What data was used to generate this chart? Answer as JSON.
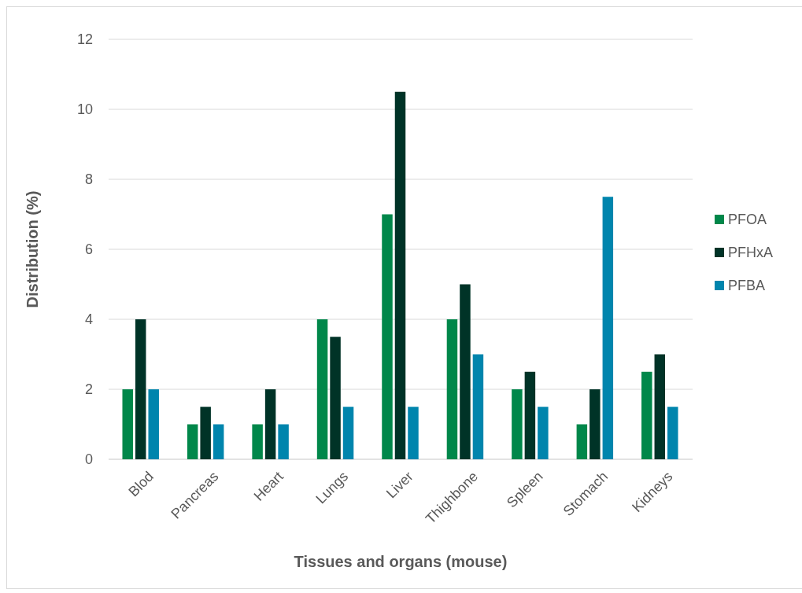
{
  "chart_data": {
    "type": "bar",
    "xlabel": "Tissues and organs (mouse)",
    "ylabel": "Distribution (%)",
    "categories": [
      "Blod",
      "Pancreas",
      "Heart",
      "Lungs",
      "Liver",
      "Thighbone",
      "Spleen",
      "Stomach",
      "Kidneys"
    ],
    "series": [
      {
        "name": "PFOA",
        "color": "#00874a",
        "values": [
          2,
          1,
          1,
          4,
          7,
          4,
          2,
          1,
          2.5
        ]
      },
      {
        "name": "PFHxA",
        "color": "#003327",
        "values": [
          4,
          1.5,
          2,
          3.5,
          10.5,
          5,
          2.5,
          2,
          3
        ]
      },
      {
        "name": "PFBA",
        "color": "#0085ad",
        "values": [
          2,
          1,
          1,
          1.5,
          1.5,
          3,
          1.5,
          7.5,
          1.5
        ]
      }
    ],
    "ylim": [
      0,
      12
    ],
    "yticks": [
      0,
      2,
      4,
      6,
      8,
      10,
      12
    ],
    "grid": "y",
    "legend": "right"
  }
}
